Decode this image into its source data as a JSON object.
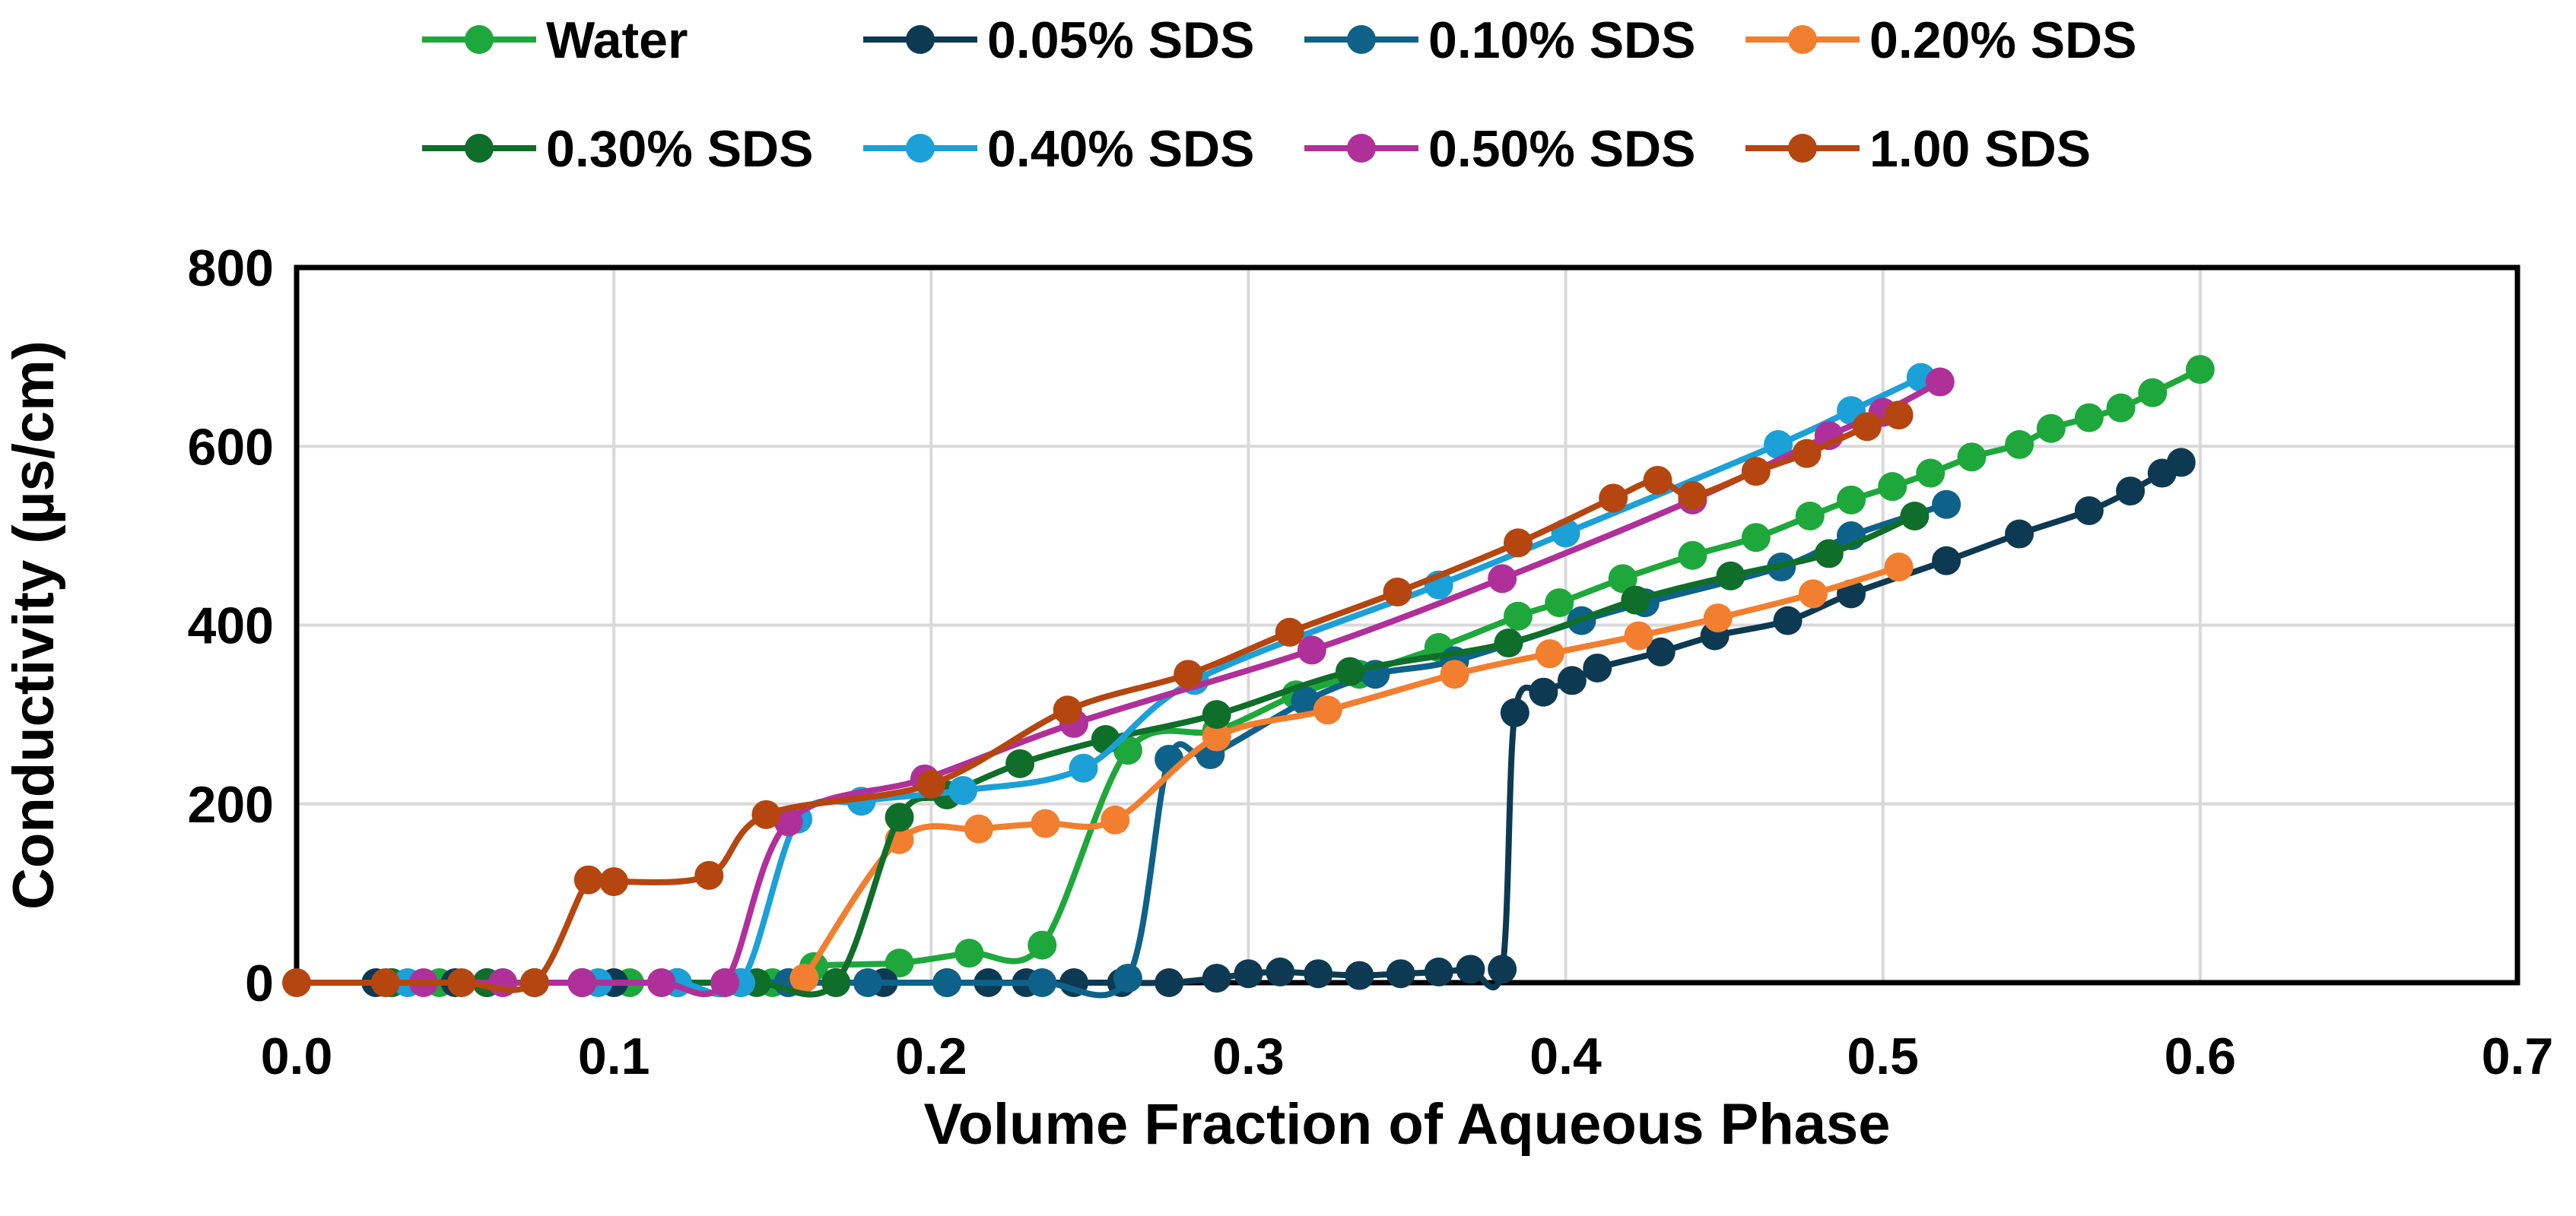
{
  "chart_data": {
    "type": "line",
    "title": "",
    "xlabel": "Volume Fraction of Aqueous Phase",
    "ylabel": "Conductivity (µs/cm)",
    "xlim": [
      0,
      0.7
    ],
    "ylim": [
      0,
      800
    ],
    "x_ticks": [
      "0.0",
      "0.1",
      "0.2",
      "0.3",
      "0.4",
      "0.5",
      "0.6",
      "0.7"
    ],
    "y_ticks": [
      "0",
      "200",
      "400",
      "600",
      "800"
    ],
    "grid": true,
    "legend_position": "top",
    "series": [
      {
        "name": "Water",
        "color": "#1ea83c",
        "points": [
          [
            0.03,
            0
          ],
          [
            0.045,
            0
          ],
          [
            0.06,
            0
          ],
          [
            0.075,
            0
          ],
          [
            0.09,
            0
          ],
          [
            0.105,
            0
          ],
          [
            0.12,
            0
          ],
          [
            0.135,
            0
          ],
          [
            0.15,
            0
          ],
          [
            0.163,
            18
          ],
          [
            0.19,
            22
          ],
          [
            0.212,
            33
          ],
          [
            0.235,
            42
          ],
          [
            0.262,
            260
          ],
          [
            0.29,
            282
          ],
          [
            0.315,
            322
          ],
          [
            0.335,
            345
          ],
          [
            0.36,
            375
          ],
          [
            0.385,
            410
          ],
          [
            0.398,
            425
          ],
          [
            0.418,
            452
          ],
          [
            0.44,
            478
          ],
          [
            0.46,
            498
          ],
          [
            0.477,
            522
          ],
          [
            0.49,
            540
          ],
          [
            0.503,
            555
          ],
          [
            0.515,
            570
          ],
          [
            0.528,
            588
          ],
          [
            0.543,
            602
          ],
          [
            0.553,
            620
          ],
          [
            0.565,
            632
          ],
          [
            0.575,
            643
          ],
          [
            0.585,
            660
          ],
          [
            0.6,
            686
          ]
        ]
      },
      {
        "name": "0.05% SDS",
        "color": "#0d3a52",
        "points": [
          [
            0.025,
            0
          ],
          [
            0.05,
            0
          ],
          [
            0.075,
            0
          ],
          [
            0.1,
            0
          ],
          [
            0.12,
            0
          ],
          [
            0.14,
            0
          ],
          [
            0.155,
            0
          ],
          [
            0.17,
            0
          ],
          [
            0.185,
            0
          ],
          [
            0.205,
            0
          ],
          [
            0.218,
            0
          ],
          [
            0.23,
            0
          ],
          [
            0.245,
            0
          ],
          [
            0.26,
            0
          ],
          [
            0.275,
            0
          ],
          [
            0.29,
            5
          ],
          [
            0.3,
            10
          ],
          [
            0.31,
            12
          ],
          [
            0.322,
            10
          ],
          [
            0.335,
            8
          ],
          [
            0.348,
            10
          ],
          [
            0.36,
            12
          ],
          [
            0.37,
            15
          ],
          [
            0.38,
            15
          ],
          [
            0.384,
            302
          ],
          [
            0.393,
            325
          ],
          [
            0.402,
            338
          ],
          [
            0.41,
            352
          ],
          [
            0.43,
            370
          ],
          [
            0.447,
            388
          ],
          [
            0.47,
            405
          ],
          [
            0.49,
            435
          ],
          [
            0.52,
            472
          ],
          [
            0.543,
            502
          ],
          [
            0.565,
            528
          ],
          [
            0.578,
            550
          ],
          [
            0.588,
            570
          ],
          [
            0.594,
            582
          ]
        ]
      },
      {
        "name": "0.10% SDS",
        "color": "#0e6289",
        "points": [
          [
            0.03,
            0
          ],
          [
            0.06,
            0
          ],
          [
            0.09,
            0
          ],
          [
            0.12,
            0
          ],
          [
            0.155,
            0
          ],
          [
            0.18,
            0
          ],
          [
            0.205,
            0
          ],
          [
            0.235,
            0
          ],
          [
            0.262,
            5
          ],
          [
            0.275,
            250
          ],
          [
            0.288,
            255
          ],
          [
            0.318,
            315
          ],
          [
            0.34,
            345
          ],
          [
            0.365,
            360
          ],
          [
            0.405,
            405
          ],
          [
            0.425,
            425
          ],
          [
            0.468,
            465
          ],
          [
            0.49,
            500
          ],
          [
            0.52,
            535
          ]
        ]
      },
      {
        "name": "0.20% SDS",
        "color": "#f27e2f",
        "points": [
          [
            0.16,
            5
          ],
          [
            0.19,
            160
          ],
          [
            0.215,
            172
          ],
          [
            0.236,
            178
          ],
          [
            0.258,
            182
          ],
          [
            0.29,
            275
          ],
          [
            0.325,
            305
          ],
          [
            0.365,
            345
          ],
          [
            0.395,
            368
          ],
          [
            0.423,
            388
          ],
          [
            0.448,
            408
          ],
          [
            0.478,
            435
          ],
          [
            0.505,
            465
          ]
        ]
      },
      {
        "name": "0.30% SDS",
        "color": "#0f6e2a",
        "points": [
          [
            0.03,
            0
          ],
          [
            0.06,
            0
          ],
          [
            0.09,
            0
          ],
          [
            0.12,
            0
          ],
          [
            0.145,
            0
          ],
          [
            0.17,
            0
          ],
          [
            0.19,
            185
          ],
          [
            0.205,
            210
          ],
          [
            0.228,
            245
          ],
          [
            0.255,
            272
          ],
          [
            0.29,
            300
          ],
          [
            0.332,
            348
          ],
          [
            0.382,
            380
          ],
          [
            0.422,
            428
          ],
          [
            0.452,
            455
          ],
          [
            0.483,
            480
          ],
          [
            0.51,
            522
          ]
        ]
      },
      {
        "name": "0.40% SDS",
        "color": "#1ba0d8",
        "points": [
          [
            0.035,
            0
          ],
          [
            0.065,
            0
          ],
          [
            0.095,
            0
          ],
          [
            0.12,
            0
          ],
          [
            0.14,
            0
          ],
          [
            0.158,
            183
          ],
          [
            0.178,
            203
          ],
          [
            0.21,
            215
          ],
          [
            0.248,
            240
          ],
          [
            0.283,
            338
          ],
          [
            0.36,
            445
          ],
          [
            0.4,
            503
          ],
          [
            0.467,
            602
          ],
          [
            0.49,
            640
          ],
          [
            0.512,
            677
          ]
        ]
      },
      {
        "name": "0.50% SDS",
        "color": "#b0309a",
        "points": [
          [
            0.04,
            0
          ],
          [
            0.065,
            0
          ],
          [
            0.09,
            0
          ],
          [
            0.115,
            0
          ],
          [
            0.135,
            0
          ],
          [
            0.155,
            180
          ],
          [
            0.198,
            228
          ],
          [
            0.245,
            290
          ],
          [
            0.32,
            372
          ],
          [
            0.38,
            452
          ],
          [
            0.44,
            540
          ],
          [
            0.483,
            612
          ],
          [
            0.5,
            638
          ],
          [
            0.518,
            672
          ]
        ]
      },
      {
        "name": "1.00 SDS",
        "color": "#b5460f",
        "points": [
          [
            0.0,
            0
          ],
          [
            0.028,
            0
          ],
          [
            0.052,
            0
          ],
          [
            0.075,
            0
          ],
          [
            0.092,
            115
          ],
          [
            0.1,
            113
          ],
          [
            0.13,
            120
          ],
          [
            0.148,
            188
          ],
          [
            0.2,
            222
          ],
          [
            0.243,
            305
          ],
          [
            0.281,
            345
          ],
          [
            0.313,
            392
          ],
          [
            0.347,
            437
          ],
          [
            0.385,
            492
          ],
          [
            0.415,
            542
          ],
          [
            0.429,
            562
          ],
          [
            0.44,
            545
          ],
          [
            0.46,
            572
          ],
          [
            0.476,
            592
          ],
          [
            0.495,
            622
          ],
          [
            0.505,
            635
          ]
        ]
      }
    ]
  }
}
